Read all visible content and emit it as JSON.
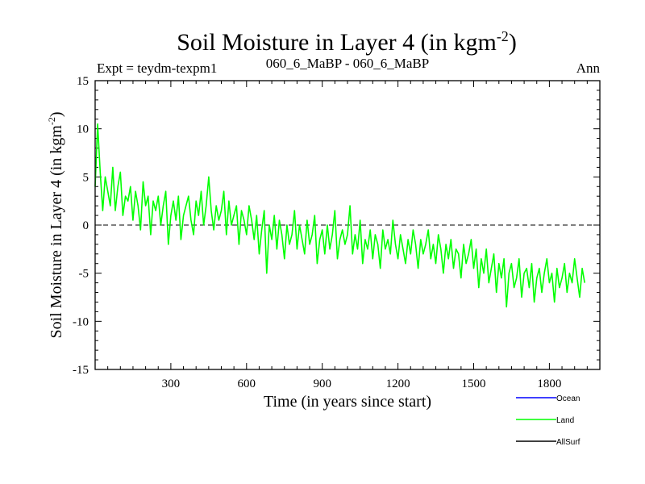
{
  "chart_data": {
    "type": "line",
    "title": "Soil Moisture in Layer 4 (in kgm",
    "title_sup": "-2",
    "title_close": ")",
    "subtitle_left": "Expt = teydm-texpm1",
    "subtitle_center": "060_6_MaBP - 060_6_MaBP",
    "subtitle_right": "Ann",
    "xlabel": "Time (in years since start)",
    "ylabel": "Soil Moisture in Layer 4 (in kgm",
    "ylabel_sup": "-2",
    "ylabel_close": ")",
    "xlim": [
      0,
      2000
    ],
    "ylim": [
      -15,
      15
    ],
    "xticks": [
      300,
      600,
      900,
      1200,
      1500,
      1800
    ],
    "yticks": [
      15,
      10,
      5,
      0,
      -5,
      -10,
      -15
    ],
    "zero_line": true,
    "legend": [
      {
        "name": "Ocean",
        "color": "#0000ff"
      },
      {
        "name": "Land",
        "color": "#00ff00"
      },
      {
        "name": "AllSurf",
        "color": "#000000"
      }
    ],
    "series": [
      {
        "name": "Land",
        "color": "#00ff00",
        "x_start": 0,
        "x_step": 10,
        "values": [
          4.0,
          10.5,
          5.5,
          1.5,
          5.0,
          3.5,
          2.0,
          6.0,
          1.5,
          4.0,
          5.5,
          1.0,
          3.0,
          2.5,
          4.0,
          0.5,
          3.5,
          2.0,
          -0.5,
          4.5,
          2.0,
          3.0,
          -1.0,
          2.5,
          1.5,
          3.0,
          0.0,
          2.0,
          3.5,
          -2.0,
          1.0,
          2.5,
          0.5,
          3.0,
          -1.5,
          1.0,
          2.0,
          3.0,
          0.5,
          -1.0,
          2.5,
          1.0,
          3.5,
          0.0,
          2.0,
          5.0,
          1.5,
          -0.5,
          2.0,
          0.5,
          1.5,
          3.5,
          -1.0,
          2.5,
          0.0,
          1.0,
          2.0,
          -2.0,
          1.5,
          0.5,
          -1.0,
          2.0,
          0.5,
          -1.5,
          1.0,
          -3.0,
          -0.5,
          1.5,
          -5.0,
          0.0,
          -1.5,
          1.0,
          -2.5,
          0.5,
          -1.0,
          -3.5,
          0.0,
          -2.0,
          -1.0,
          1.5,
          -2.5,
          0.0,
          -1.5,
          -3.0,
          0.5,
          -2.0,
          -1.0,
          1.0,
          -4.0,
          -1.5,
          -0.5,
          -3.0,
          0.0,
          -2.5,
          -1.0,
          1.5,
          -3.5,
          -1.5,
          -0.5,
          -2.0,
          -1.0,
          2.0,
          -3.0,
          -1.0,
          -2.5,
          0.5,
          -4.0,
          -1.5,
          -2.5,
          -0.5,
          -3.5,
          -1.0,
          -2.0,
          -4.5,
          -0.5,
          -2.5,
          -1.5,
          -3.0,
          0.5,
          -2.0,
          -3.5,
          -1.0,
          -2.5,
          -4.0,
          -1.5,
          -3.0,
          -0.5,
          -2.0,
          -4.5,
          -1.5,
          -3.0,
          -2.0,
          -0.5,
          -3.5,
          -2.0,
          -4.0,
          -1.0,
          -2.5,
          -5.0,
          -2.0,
          -3.5,
          -1.5,
          -4.5,
          -2.5,
          -3.0,
          -5.5,
          -2.0,
          -4.0,
          -3.0,
          -1.5,
          -4.5,
          -2.5,
          -6.5,
          -3.5,
          -5.0,
          -2.5,
          -6.0,
          -4.5,
          -3.0,
          -7.0,
          -4.0,
          -5.5,
          -3.5,
          -8.5,
          -5.0,
          -4.0,
          -6.5,
          -5.5,
          -3.5,
          -7.5,
          -5.0,
          -4.5,
          -6.5,
          -4.0,
          -8.0,
          -5.5,
          -4.5,
          -7.0,
          -5.0,
          -3.5,
          -6.0,
          -5.0,
          -8.0,
          -4.5,
          -6.5,
          -5.5,
          -4.0,
          -7.0,
          -5.0,
          -6.0,
          -3.5,
          -5.5,
          -7.5,
          -4.5,
          -6.0
        ]
      }
    ]
  }
}
